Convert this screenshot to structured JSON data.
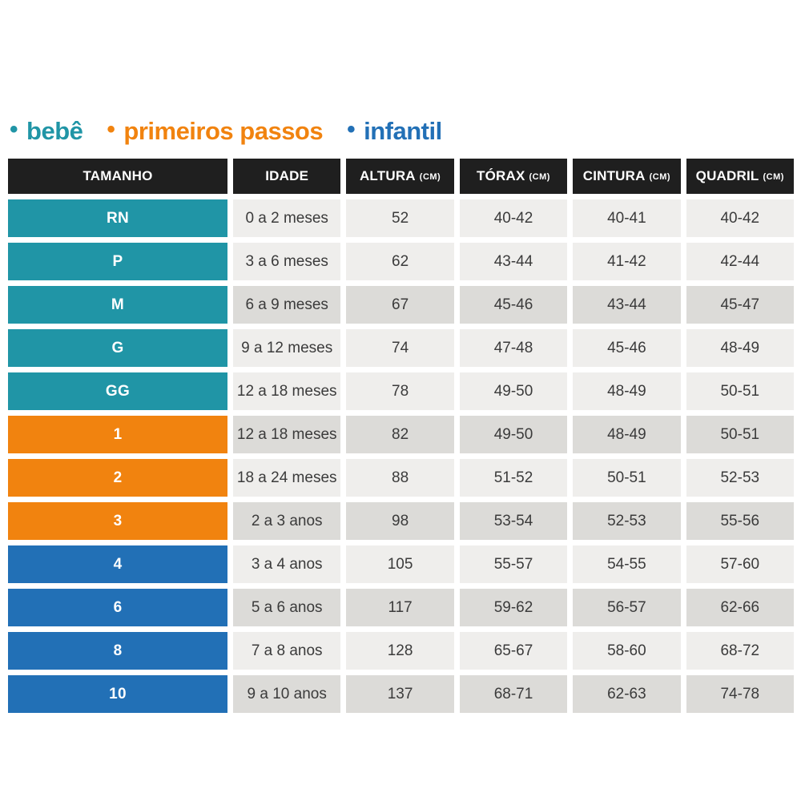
{
  "legend": {
    "bullet": "•",
    "items": [
      {
        "label": "bebê",
        "color_key": "bebe"
      },
      {
        "label": "primeiros passos",
        "color_key": "passos"
      },
      {
        "label": "infantil",
        "color_key": "infantil"
      }
    ]
  },
  "colors": {
    "bebe": "#2095A6",
    "passos": "#F1830F",
    "infantil": "#2270B6",
    "header_bg": "#1F1F1F",
    "header_text": "#FFFFFF",
    "row_light": "#EFEEEC",
    "row_dark": "#DCDBD8",
    "cell_text": "#3B3B3B"
  },
  "table": {
    "headers": [
      {
        "label": "TAMANHO",
        "unit": ""
      },
      {
        "label": "IDADE",
        "unit": ""
      },
      {
        "label": "ALTURA",
        "unit": "(CM)"
      },
      {
        "label": "TÓRAX",
        "unit": "(CM)"
      },
      {
        "label": "CINTURA",
        "unit": "(CM)"
      },
      {
        "label": "QUADRIL",
        "unit": "(CM)"
      }
    ],
    "rows": [
      {
        "size": "RN",
        "group": "bebe",
        "shade": "light",
        "idade": "0 a 2 meses",
        "altura": "52",
        "torax": "40-42",
        "cintura": "40-41",
        "quadril": "40-42"
      },
      {
        "size": "P",
        "group": "bebe",
        "shade": "light",
        "idade": "3 a 6 meses",
        "altura": "62",
        "torax": "43-44",
        "cintura": "41-42",
        "quadril": "42-44"
      },
      {
        "size": "M",
        "group": "bebe",
        "shade": "dark",
        "idade": "6 a 9 meses",
        "altura": "67",
        "torax": "45-46",
        "cintura": "43-44",
        "quadril": "45-47"
      },
      {
        "size": "G",
        "group": "bebe",
        "shade": "light",
        "idade": "9 a 12 meses",
        "altura": "74",
        "torax": "47-48",
        "cintura": "45-46",
        "quadril": "48-49"
      },
      {
        "size": "GG",
        "group": "bebe",
        "shade": "light",
        "idade": "12 a 18 meses",
        "altura": "78",
        "torax": "49-50",
        "cintura": "48-49",
        "quadril": "50-51"
      },
      {
        "size": "1",
        "group": "passos",
        "shade": "dark",
        "idade": "12 a 18 meses",
        "altura": "82",
        "torax": "49-50",
        "cintura": "48-49",
        "quadril": "50-51"
      },
      {
        "size": "2",
        "group": "passos",
        "shade": "light",
        "idade": "18 a 24 meses",
        "altura": "88",
        "torax": "51-52",
        "cintura": "50-51",
        "quadril": "52-53"
      },
      {
        "size": "3",
        "group": "passos",
        "shade": "dark",
        "idade": "2 a 3 anos",
        "altura": "98",
        "torax": "53-54",
        "cintura": "52-53",
        "quadril": "55-56"
      },
      {
        "size": "4",
        "group": "infantil",
        "shade": "light",
        "idade": "3 a 4 anos",
        "altura": "105",
        "torax": "55-57",
        "cintura": "54-55",
        "quadril": "57-60"
      },
      {
        "size": "6",
        "group": "infantil",
        "shade": "dark",
        "idade": "5 a 6 anos",
        "altura": "117",
        "torax": "59-62",
        "cintura": "56-57",
        "quadril": "62-66"
      },
      {
        "size": "8",
        "group": "infantil",
        "shade": "light",
        "idade": "7 a 8 anos",
        "altura": "128",
        "torax": "65-67",
        "cintura": "58-60",
        "quadril": "68-72"
      },
      {
        "size": "10",
        "group": "infantil",
        "shade": "dark",
        "idade": "9 a 10 anos",
        "altura": "137",
        "torax": "68-71",
        "cintura": "62-63",
        "quadril": "74-78"
      }
    ]
  },
  "chart_data": {
    "type": "table",
    "title": "",
    "legend": [
      "bebê",
      "primeiros passos",
      "infantil"
    ],
    "legend_position": "top",
    "columns": [
      "TAMANHO",
      "IDADE",
      "ALTURA (CM)",
      "TÓRAX (CM)",
      "CINTURA (CM)",
      "QUADRIL (CM)"
    ],
    "rows": [
      [
        "RN",
        "0 a 2 meses",
        "52",
        "40-42",
        "40-41",
        "40-42"
      ],
      [
        "P",
        "3 a 6 meses",
        "62",
        "43-44",
        "41-42",
        "42-44"
      ],
      [
        "M",
        "6 a 9 meses",
        "67",
        "45-46",
        "43-44",
        "45-47"
      ],
      [
        "G",
        "9 a 12 meses",
        "74",
        "47-48",
        "45-46",
        "48-49"
      ],
      [
        "GG",
        "12 a 18 meses",
        "78",
        "49-50",
        "48-49",
        "50-51"
      ],
      [
        "1",
        "12 a 18 meses",
        "82",
        "49-50",
        "48-49",
        "50-51"
      ],
      [
        "2",
        "18 a 24 meses",
        "88",
        "51-52",
        "50-51",
        "52-53"
      ],
      [
        "3",
        "2 a 3 anos",
        "98",
        "53-54",
        "52-53",
        "55-56"
      ],
      [
        "4",
        "3 a 4 anos",
        "105",
        "55-57",
        "54-55",
        "57-60"
      ],
      [
        "6",
        "5 a 6 anos",
        "117",
        "59-62",
        "56-57",
        "62-66"
      ],
      [
        "8",
        "7 a 8 anos",
        "128",
        "65-67",
        "58-60",
        "68-72"
      ],
      [
        "10",
        "9 a 10 anos",
        "137",
        "68-71",
        "62-63",
        "74-78"
      ]
    ],
    "row_groups": [
      "bebê",
      "bebê",
      "bebê",
      "bebê",
      "bebê",
      "primeiros passos",
      "primeiros passos",
      "primeiros passos",
      "infantil",
      "infantil",
      "infantil",
      "infantil"
    ]
  }
}
